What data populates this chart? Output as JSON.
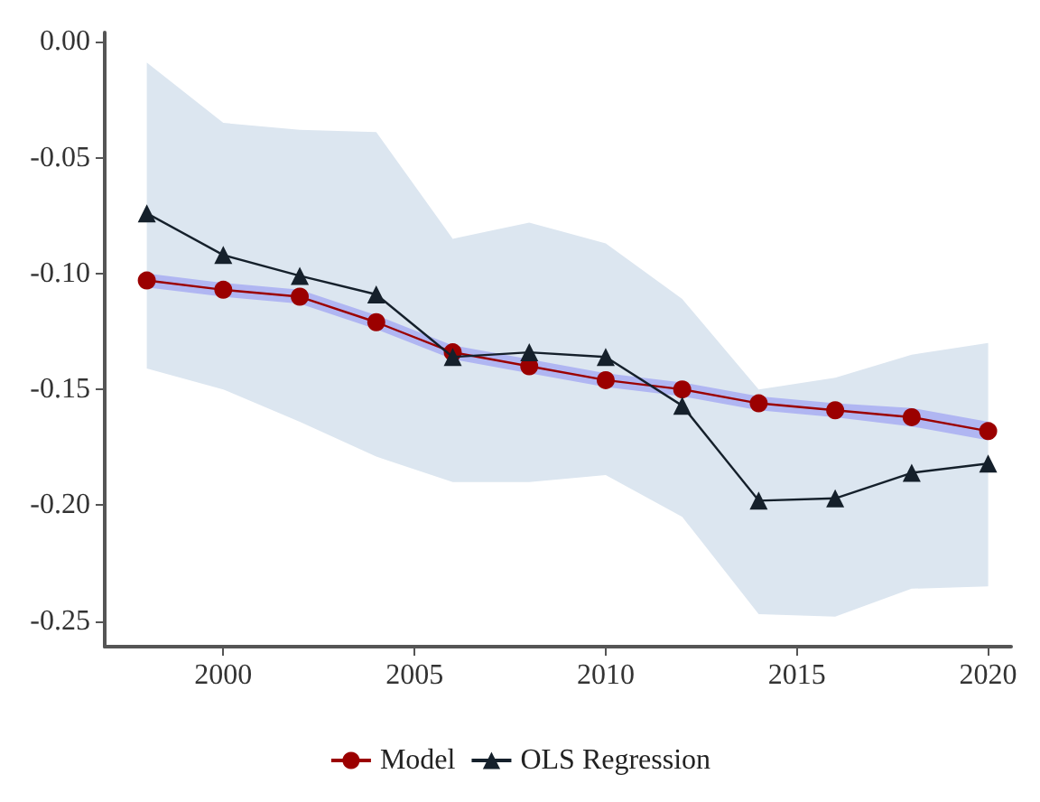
{
  "chart_data": {
    "type": "line",
    "x": [
      1998,
      2000,
      2002,
      2004,
      2006,
      2008,
      2010,
      2012,
      2014,
      2016,
      2018,
      2020
    ],
    "series": [
      {
        "name": "OLS Regression",
        "color": "#15202b",
        "marker": "triangle",
        "values": [
          -0.074,
          -0.092,
          -0.101,
          -0.109,
          -0.136,
          -0.134,
          -0.136,
          -0.157,
          -0.198,
          -0.197,
          -0.186,
          -0.182
        ],
        "lower": [
          -0.141,
          -0.15,
          -0.164,
          -0.179,
          -0.19,
          -0.19,
          -0.187,
          -0.205,
          -0.247,
          -0.248,
          -0.236,
          -0.235
        ],
        "upper": [
          -0.009,
          -0.035,
          -0.038,
          -0.039,
          -0.085,
          -0.078,
          -0.087,
          -0.111,
          -0.15,
          -0.145,
          -0.135,
          -0.13
        ]
      },
      {
        "name": "Model",
        "color": "#9b0000",
        "marker": "circle",
        "values": [
          -0.103,
          -0.107,
          -0.11,
          -0.121,
          -0.134,
          -0.14,
          -0.146,
          -0.15,
          -0.156,
          -0.159,
          -0.162,
          -0.168
        ],
        "lower": [
          -0.106,
          -0.11,
          -0.113,
          -0.124,
          -0.137,
          -0.143,
          -0.149,
          -0.153,
          -0.159,
          -0.162,
          -0.166,
          -0.172
        ],
        "upper": [
          -0.1,
          -0.104,
          -0.107,
          -0.118,
          -0.131,
          -0.137,
          -0.143,
          -0.147,
          -0.153,
          -0.156,
          -0.158,
          -0.164
        ]
      }
    ],
    "xlim": [
      1996.9,
      2020.6
    ],
    "xticks": [
      2000,
      2005,
      2010,
      2015,
      2020
    ],
    "ylim": [
      -0.261,
      0.004
    ],
    "yticks": [
      {
        "value": 0,
        "label": "0.00"
      },
      {
        "value": -0.05,
        "label": "-0.05"
      },
      {
        "value": -0.1,
        "label": "-0.10"
      },
      {
        "value": -0.15,
        "label": "-0.15"
      },
      {
        "value": -0.2,
        "label": "-0.20"
      },
      {
        "value": -0.25,
        "label": "-0.25"
      }
    ],
    "grid": false,
    "legend": "bottom",
    "line_style": "solid"
  }
}
